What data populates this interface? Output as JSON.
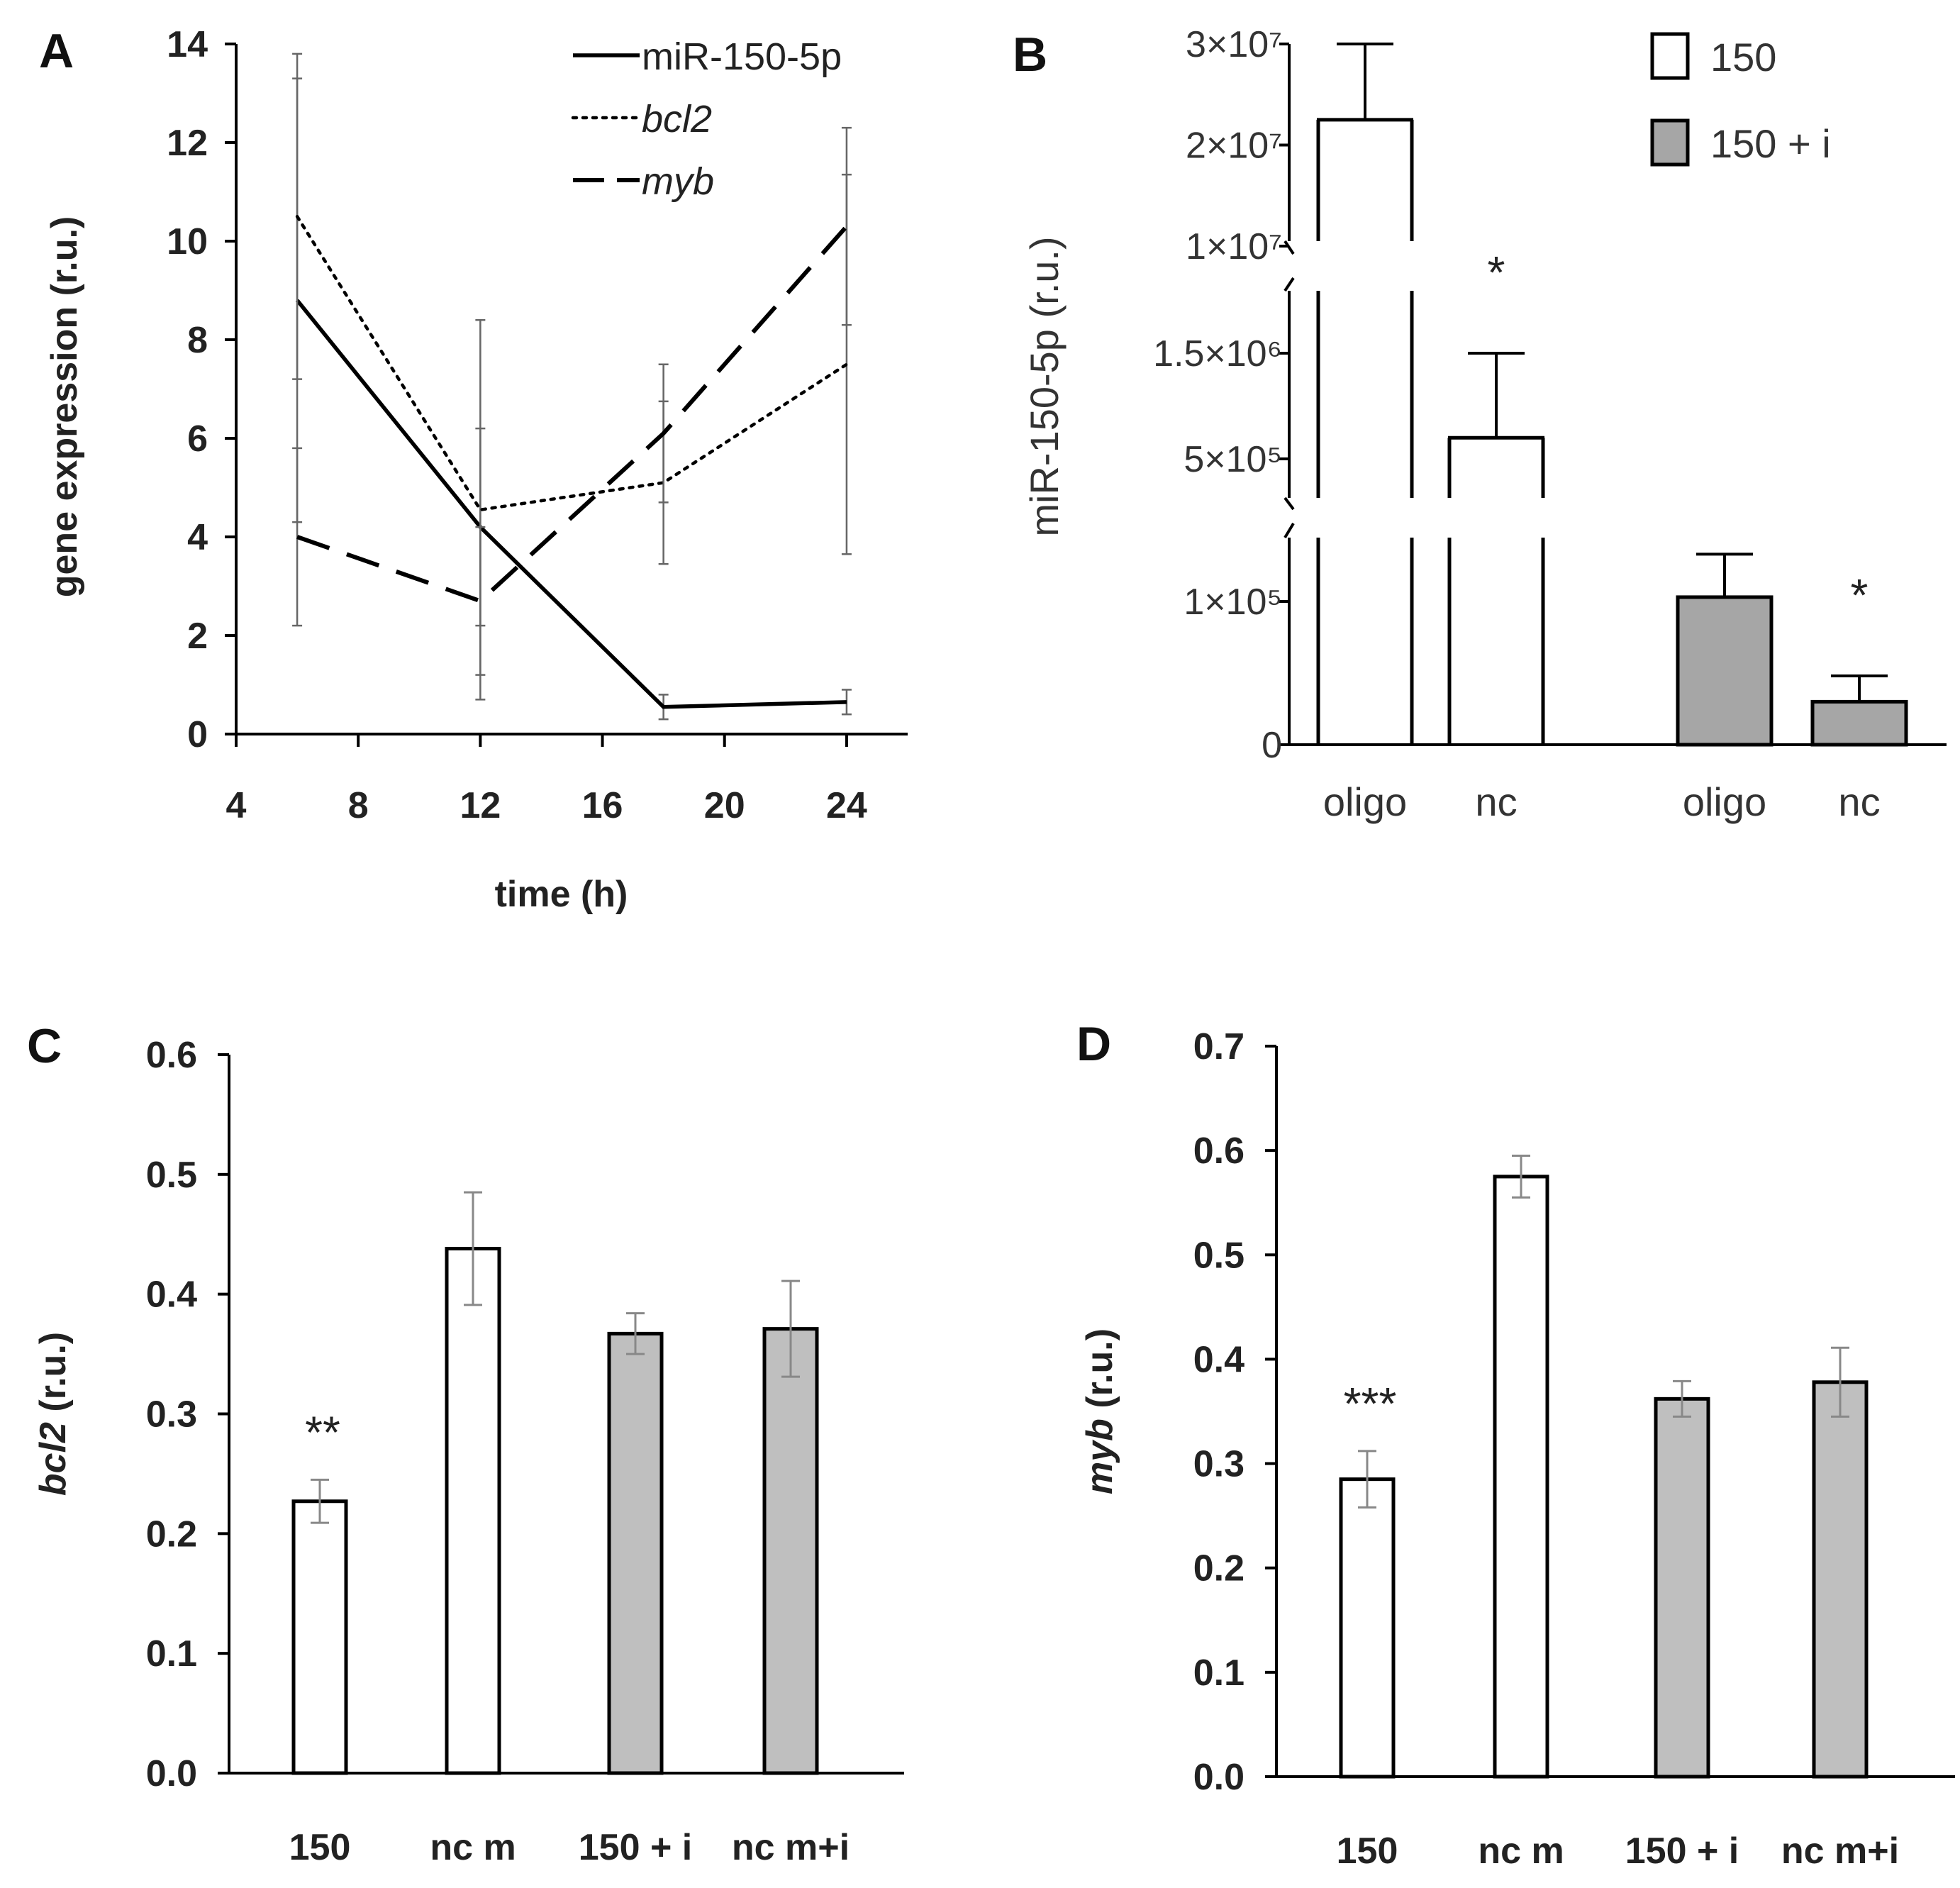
{
  "chart_data": [
    {
      "panel": "A",
      "type": "line",
      "xlabel": "time (h)",
      "ylabel": "gene expression (r.u.)",
      "xlim": [
        4,
        26
      ],
      "ylim": [
        0,
        14
      ],
      "xticks": [
        "4",
        "8",
        "12",
        "16",
        "20",
        "24"
      ],
      "yticks": [
        "0",
        "2",
        "4",
        "6",
        "8",
        "10",
        "12",
        "14"
      ],
      "x": [
        6,
        12,
        18,
        24
      ],
      "series": [
        {
          "name": "miR-150-5p",
          "style": "solid",
          "italic": false,
          "values": [
            8.8,
            4.2,
            0.55,
            0.65
          ],
          "err": [
            4.5,
            2.0,
            0.25,
            0.25
          ]
        },
        {
          "name": "bcl2",
          "style": "dotted",
          "italic": true,
          "values": [
            10.5,
            4.55,
            5.1,
            7.5
          ],
          "err": [
            3.3,
            3.85,
            1.65,
            3.85
          ]
        },
        {
          "name": "myb",
          "style": "dashed",
          "italic": true,
          "values": [
            4.0,
            2.7,
            6.1,
            10.3
          ],
          "err": [
            1.8,
            1.5,
            1.4,
            2.0
          ]
        }
      ]
    },
    {
      "panel": "B",
      "type": "bar",
      "ylabel": "miR-150-5p (r.u.)",
      "yticks": [
        "0",
        "1×10⁵",
        "5×10⁵",
        "1.5×10⁶",
        "1×10⁷",
        "2×10⁷",
        "3×10⁷"
      ],
      "categories": [
        "oligo",
        "nc",
        "oligo",
        "nc"
      ],
      "groups": [
        "150",
        "150",
        "150 + i",
        "150 + i"
      ],
      "values": [
        22500000,
        700000,
        103000,
        30000
      ],
      "err": [
        7500000,
        800000,
        30000,
        18000
      ],
      "significance": [
        "",
        "*",
        "",
        "*"
      ],
      "legend": [
        "150",
        "150 + i"
      ],
      "colors": {
        "150": "#ffffff",
        "150 + i": "#a6a6a6"
      }
    },
    {
      "panel": "C",
      "type": "bar",
      "ylabel_italic": "bcl2",
      "ylabel_rest": " (r.u.)",
      "ylim": [
        0,
        0.6
      ],
      "yticks": [
        "0.0",
        "0.1",
        "0.2",
        "0.3",
        "0.4",
        "0.5",
        "0.6"
      ],
      "categories": [
        "150",
        "nc m",
        "150 + i",
        "nc m+i"
      ],
      "values": [
        0.227,
        0.438,
        0.367,
        0.371
      ],
      "err": [
        0.018,
        0.047,
        0.017,
        0.04
      ],
      "significance": [
        "**",
        "",
        "",
        ""
      ],
      "colors": [
        "#ffffff",
        "#ffffff",
        "#bfbfbf",
        "#bfbfbf"
      ]
    },
    {
      "panel": "D",
      "type": "bar",
      "ylabel_italic": "myb",
      "ylabel_rest": " (r.u.)",
      "ylim": [
        0,
        0.7
      ],
      "yticks": [
        "0.0",
        "0.1",
        "0.2",
        "0.3",
        "0.4",
        "0.5",
        "0.6",
        "0.7"
      ],
      "categories": [
        "150",
        "nc m",
        "150 + i",
        "nc m+i"
      ],
      "values": [
        0.285,
        0.575,
        0.362,
        0.378
      ],
      "err": [
        0.027,
        0.02,
        0.017,
        0.033
      ],
      "significance": [
        "***",
        "",
        "",
        ""
      ],
      "colors": [
        "#ffffff",
        "#ffffff",
        "#bfbfbf",
        "#bfbfbf"
      ]
    }
  ]
}
